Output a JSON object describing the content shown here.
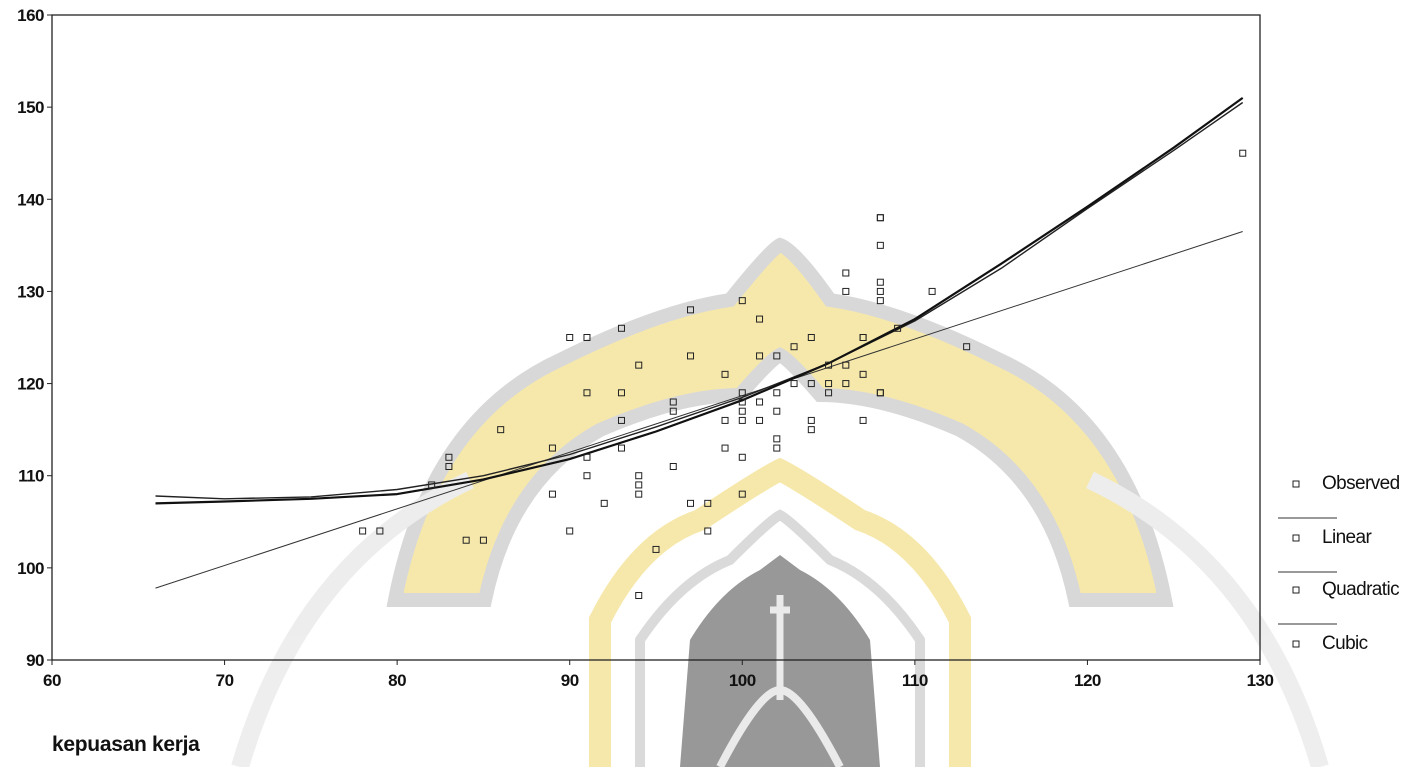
{
  "chart_data": {
    "type": "scatter",
    "title": "",
    "xlabel": "kepuasan kerja",
    "ylabel": "",
    "xlim": [
      60,
      130
    ],
    "ylim": [
      90,
      160
    ],
    "xticks": [
      60,
      70,
      80,
      90,
      100,
      110,
      120,
      130
    ],
    "yticks": [
      90,
      100,
      110,
      120,
      130,
      140,
      150,
      160
    ],
    "grid": false,
    "legend_position": "right",
    "legend": [
      "Observed",
      "Linear",
      "Quadratic",
      "Cubic"
    ],
    "observed": {
      "name": "Observed",
      "x": [
        78,
        79,
        82,
        83,
        83,
        84,
        85,
        86,
        89,
        89,
        90,
        90,
        91,
        91,
        91,
        91,
        92,
        93,
        93,
        93,
        93,
        94,
        94,
        94,
        94,
        94,
        95,
        96,
        96,
        96,
        97,
        97,
        97,
        98,
        98,
        99,
        99,
        99,
        100,
        100,
        100,
        100,
        100,
        100,
        100,
        101,
        101,
        101,
        101,
        102,
        102,
        102,
        102,
        102,
        103,
        103,
        104,
        104,
        104,
        104,
        105,
        105,
        105,
        106,
        106,
        106,
        106,
        107,
        107,
        107,
        107,
        108,
        108,
        108,
        108,
        108,
        108,
        108,
        108,
        109,
        111,
        113,
        129
      ],
      "y": [
        104,
        104,
        109,
        111,
        112,
        103,
        103,
        115,
        108,
        113,
        104,
        125,
        110,
        112,
        119,
        125,
        107,
        113,
        116,
        119,
        126,
        108,
        109,
        110,
        122,
        97,
        102,
        111,
        117,
        118,
        107,
        123,
        128,
        104,
        107,
        113,
        116,
        121,
        108,
        112,
        116,
        117,
        118,
        119,
        129,
        116,
        118,
        123,
        127,
        113,
        114,
        117,
        119,
        123,
        120,
        124,
        115,
        116,
        120,
        125,
        119,
        120,
        122,
        120,
        122,
        130,
        132,
        116,
        121,
        125,
        125,
        119,
        119,
        129,
        130,
        131,
        135,
        138,
        138,
        126,
        130,
        124,
        145
      ]
    },
    "series": [
      {
        "name": "Linear",
        "x": [
          66,
          129
        ],
        "y": [
          97.8,
          136.5
        ]
      },
      {
        "name": "Quadratic",
        "x": [
          66,
          70,
          75,
          80,
          85,
          90,
          95,
          100,
          105,
          110,
          115,
          120,
          125,
          129
        ],
        "y": [
          107.8,
          107.5,
          107.7,
          108.5,
          110.0,
          112.3,
          115.3,
          118.5,
          122.2,
          126.8,
          132.5,
          139.0,
          145.3,
          150.5
        ]
      },
      {
        "name": "Cubic",
        "x": [
          66,
          70,
          75,
          80,
          85,
          90,
          95,
          100,
          105,
          110,
          115,
          120,
          125,
          129
        ],
        "y": [
          107.0,
          107.2,
          107.5,
          108.0,
          109.6,
          111.8,
          114.8,
          118.2,
          122.2,
          127.0,
          133.0,
          139.2,
          145.6,
          151.0
        ]
      }
    ]
  }
}
